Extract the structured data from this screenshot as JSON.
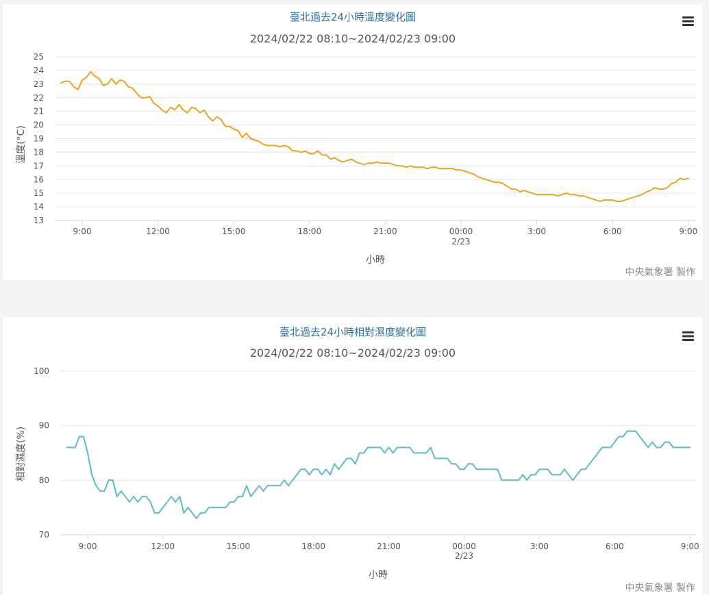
{
  "footer_credit": "中央氣象署 製作",
  "colors": {
    "temperature_line": "#e8a41f",
    "humidity_line": "#5bbcc5",
    "gridline": "#e6e6e6",
    "axis": "#ccd6eb"
  },
  "icons": {
    "chart_menu": "hamburger-menu-icon"
  },
  "chart_data": [
    {
      "type": "line",
      "title": "臺北過去24小時溫度變化圖",
      "subtitle": "2024/02/22 08:10~2024/02/23 09:00",
      "xlabel": "小時",
      "ylabel": "溫度(°C)",
      "ylim": [
        13,
        25
      ],
      "yticks": [
        "13",
        "14",
        "15",
        "16",
        "17",
        "18",
        "19",
        "20",
        "21",
        "22",
        "23",
        "24",
        "25"
      ],
      "xticks": [
        {
          "label": "9:00",
          "sub": ""
        },
        {
          "label": "12:00",
          "sub": ""
        },
        {
          "label": "15:00",
          "sub": ""
        },
        {
          "label": "18:00",
          "sub": ""
        },
        {
          "label": "21:00",
          "sub": ""
        },
        {
          "label": "00:00",
          "sub": "2/23"
        },
        {
          "label": "3:00",
          "sub": ""
        },
        {
          "label": "6:00",
          "sub": ""
        },
        {
          "label": "9:00",
          "sub": ""
        }
      ],
      "grid": true,
      "legend": "none",
      "series": [
        {
          "interval_minutes": 10,
          "values": [
            23.1,
            23.2,
            23.2,
            22.8,
            22.6,
            23.3,
            23.5,
            23.9,
            23.6,
            23.4,
            22.9,
            23.0,
            23.4,
            23.0,
            23.3,
            23.2,
            22.8,
            22.7,
            22.3,
            22.0,
            22.0,
            22.1,
            21.6,
            21.4,
            21.1,
            20.9,
            21.3,
            21.1,
            21.5,
            21.1,
            20.9,
            21.3,
            21.2,
            20.9,
            21.1,
            20.6,
            20.3,
            20.6,
            20.4,
            19.9,
            19.9,
            19.7,
            19.6,
            19.1,
            19.4,
            19.0,
            18.9,
            18.8,
            18.6,
            18.5,
            18.5,
            18.5,
            18.4,
            18.5,
            18.4,
            18.1,
            18.1,
            18.0,
            18.1,
            17.9,
            17.9,
            18.1,
            17.8,
            17.8,
            17.5,
            17.6,
            17.4,
            17.3,
            17.4,
            17.5,
            17.3,
            17.2,
            17.1,
            17.2,
            17.2,
            17.3,
            17.2,
            17.2,
            17.2,
            17.1,
            17.0,
            17.0,
            16.9,
            17.0,
            16.9,
            16.9,
            16.9,
            16.8,
            16.9,
            16.9,
            16.8,
            16.8,
            16.8,
            16.8,
            16.7,
            16.7,
            16.6,
            16.5,
            16.4,
            16.2,
            16.1,
            16.0,
            15.9,
            15.8,
            15.8,
            15.7,
            15.5,
            15.3,
            15.3,
            15.1,
            15.2,
            15.1,
            15.0,
            14.9,
            14.9,
            14.9,
            14.9,
            14.9,
            14.8,
            14.9,
            15.0,
            14.9,
            14.9,
            14.8,
            14.8,
            14.7,
            14.6,
            14.5,
            14.4,
            14.5,
            14.5,
            14.5,
            14.4,
            14.4,
            14.5,
            14.6,
            14.7,
            14.8,
            14.9,
            15.1,
            15.2,
            15.4,
            15.3,
            15.3,
            15.4,
            15.7,
            15.8,
            16.1,
            16.0,
            16.1
          ]
        }
      ]
    },
    {
      "type": "line",
      "title": "臺北過去24小時相對濕度變化圖",
      "subtitle": "2024/02/22 08:10~2024/02/23 09:00",
      "xlabel": "小時",
      "ylabel": "相對濕度(%)",
      "ylim": [
        70,
        100
      ],
      "yticks": [
        "70",
        "80",
        "90",
        "100"
      ],
      "xticks": [
        {
          "label": "9:00",
          "sub": ""
        },
        {
          "label": "12:00",
          "sub": ""
        },
        {
          "label": "15:00",
          "sub": ""
        },
        {
          "label": "18:00",
          "sub": ""
        },
        {
          "label": "21:00",
          "sub": ""
        },
        {
          "label": "00:00",
          "sub": "2/23"
        },
        {
          "label": "3:00",
          "sub": ""
        },
        {
          "label": "6:00",
          "sub": ""
        },
        {
          "label": "9:00",
          "sub": ""
        }
      ],
      "grid": true,
      "legend": "none",
      "series": [
        {
          "interval_minutes": 10,
          "values": [
            86,
            86,
            86,
            88,
            88,
            85,
            81,
            79,
            78,
            78,
            80,
            80,
            77,
            78,
            77,
            76,
            77,
            76,
            77,
            77,
            76,
            74,
            74,
            75,
            76,
            77,
            76,
            77,
            74,
            75,
            74,
            73,
            74,
            74,
            75,
            75,
            75,
            75,
            75,
            76,
            76,
            77,
            77,
            79,
            77,
            78,
            79,
            78,
            79,
            79,
            79,
            79,
            80,
            79,
            80,
            81,
            82,
            82,
            81,
            82,
            82,
            81,
            82,
            81,
            83,
            82,
            83,
            84,
            84,
            83,
            85,
            85,
            86,
            86,
            86,
            86,
            85,
            86,
            85,
            86,
            86,
            86,
            86,
            85,
            85,
            85,
            85,
            86,
            84,
            84,
            84,
            84,
            83,
            83,
            82,
            82,
            83,
            83,
            82,
            82,
            82,
            82,
            82,
            82,
            80,
            80,
            80,
            80,
            80,
            81,
            80,
            81,
            81,
            82,
            82,
            82,
            81,
            81,
            81,
            82,
            81,
            80,
            81,
            82,
            82,
            83,
            84,
            85,
            86,
            86,
            86,
            87,
            88,
            88,
            89,
            89,
            89,
            88,
            87,
            86,
            87,
            86,
            86,
            87,
            87,
            86,
            86,
            86,
            86,
            86
          ]
        }
      ]
    }
  ]
}
